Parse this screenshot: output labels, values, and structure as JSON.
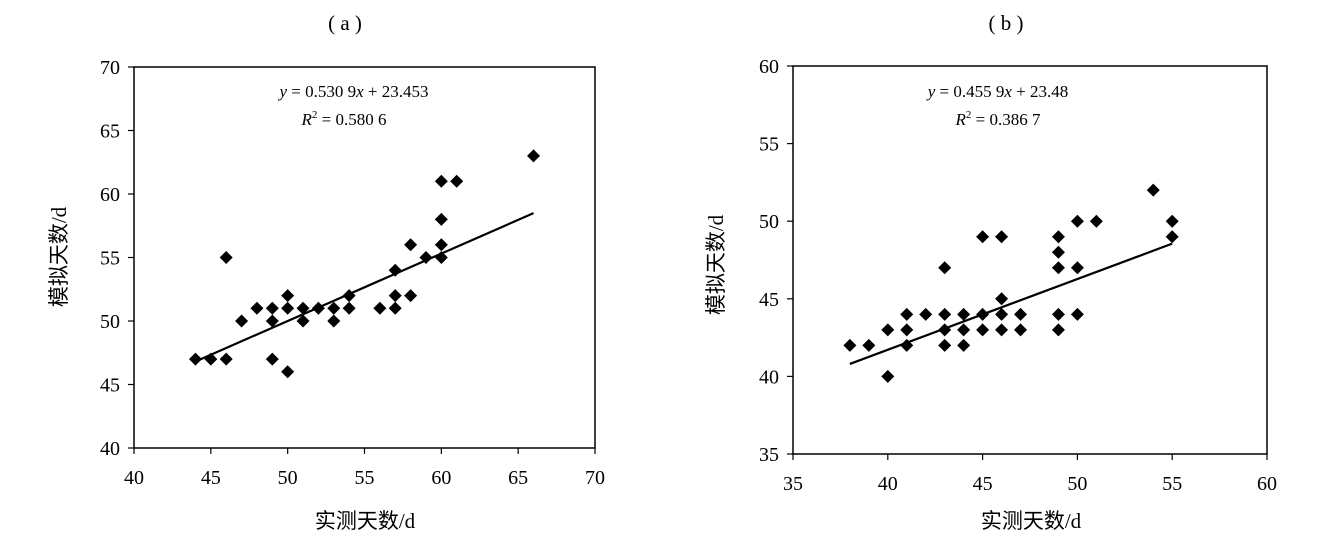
{
  "chart_data": [
    {
      "type": "scatter",
      "panel_label": "( a )",
      "xlabel": "实测天数/d",
      "ylabel": "模拟天数/d",
      "xlim": [
        40,
        70
      ],
      "ylim": [
        40,
        70
      ],
      "xticks": [
        40,
        45,
        50,
        55,
        60,
        65,
        70
      ],
      "yticks": [
        40,
        45,
        50,
        55,
        60,
        65,
        70
      ],
      "equation": {
        "y_var": "y",
        "eq_body": " = 0.530 9",
        "x_var": "x",
        "eq_tail": " + 23.453"
      },
      "r2": {
        "r_var": "R",
        "sup": "2",
        "value": " = 0.580 6"
      },
      "trendline": {
        "slope": 0.5309,
        "intercept": 23.453,
        "x_range": [
          44,
          66
        ]
      },
      "points": [
        [
          44,
          47
        ],
        [
          45,
          47
        ],
        [
          46,
          47
        ],
        [
          46,
          55
        ],
        [
          47,
          50
        ],
        [
          48,
          51
        ],
        [
          49,
          50
        ],
        [
          49,
          51
        ],
        [
          49,
          47
        ],
        [
          50,
          46
        ],
        [
          50,
          51
        ],
        [
          50,
          52
        ],
        [
          51,
          50
        ],
        [
          51,
          51
        ],
        [
          52,
          51
        ],
        [
          53,
          50
        ],
        [
          53,
          51
        ],
        [
          54,
          51
        ],
        [
          54,
          52
        ],
        [
          56,
          51
        ],
        [
          57,
          51
        ],
        [
          57,
          52
        ],
        [
          57,
          54
        ],
        [
          58,
          52
        ],
        [
          58,
          56
        ],
        [
          59,
          55
        ],
        [
          60,
          55
        ],
        [
          60,
          56
        ],
        [
          60,
          58
        ],
        [
          60,
          61
        ],
        [
          61,
          61
        ],
        [
          66,
          63
        ]
      ]
    },
    {
      "type": "scatter",
      "panel_label": "( b )",
      "xlabel": "实测天数/d",
      "ylabel": "模拟天数/d",
      "xlim": [
        35,
        60
      ],
      "ylim": [
        35,
        60
      ],
      "xticks": [
        35,
        40,
        45,
        50,
        55,
        60
      ],
      "yticks": [
        35,
        40,
        45,
        50,
        55,
        60
      ],
      "equation": {
        "y_var": "y",
        "eq_body": " = 0.455 9",
        "x_var": "x",
        "eq_tail": " + 23.48"
      },
      "r2": {
        "r_var": "R",
        "sup": "2",
        "value": " = 0.386 7"
      },
      "trendline": {
        "slope": 0.4559,
        "intercept": 23.48,
        "x_range": [
          38,
          55
        ]
      },
      "points": [
        [
          38,
          42
        ],
        [
          39,
          42
        ],
        [
          40,
          40
        ],
        [
          40,
          43
        ],
        [
          41,
          42
        ],
        [
          41,
          43
        ],
        [
          41,
          44
        ],
        [
          42,
          44
        ],
        [
          43,
          42
        ],
        [
          43,
          43
        ],
        [
          43,
          44
        ],
        [
          43,
          47
        ],
        [
          44,
          42
        ],
        [
          44,
          43
        ],
        [
          44,
          44
        ],
        [
          45,
          43
        ],
        [
          45,
          44
        ],
        [
          45,
          49
        ],
        [
          46,
          43
        ],
        [
          46,
          44
        ],
        [
          46,
          45
        ],
        [
          46,
          49
        ],
        [
          47,
          43
        ],
        [
          47,
          44
        ],
        [
          49,
          43
        ],
        [
          49,
          44
        ],
        [
          49,
          47
        ],
        [
          49,
          48
        ],
        [
          49,
          49
        ],
        [
          50,
          44
        ],
        [
          50,
          47
        ],
        [
          50,
          50
        ],
        [
          51,
          50
        ],
        [
          54,
          52
        ],
        [
          55,
          49
        ],
        [
          55,
          50
        ]
      ]
    }
  ]
}
